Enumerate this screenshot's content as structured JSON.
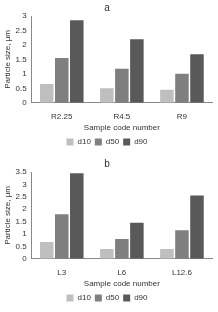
{
  "chart_data": [
    {
      "type": "bar",
      "title": "a",
      "x_label": "Sample code number",
      "y_label": "Particle size, µm",
      "categories": [
        "R2.25",
        "R4.5",
        "R9"
      ],
      "series": [
        {
          "name": "d10",
          "color": "#bfbfbf",
          "values": [
            0.65,
            0.5,
            0.45
          ]
        },
        {
          "name": "d50",
          "color": "#7f7f7f",
          "values": [
            1.55,
            1.18,
            1.0
          ]
        },
        {
          "name": "d90",
          "color": "#595959",
          "values": [
            2.85,
            2.2,
            1.68
          ]
        }
      ],
      "ylim": [
        0,
        3
      ],
      "yticks": [
        0,
        0.5,
        1,
        1.5,
        2,
        2.5,
        3
      ],
      "grid": false,
      "legend": "bottom"
    },
    {
      "type": "bar",
      "title": "b",
      "x_label": "Sample code number",
      "y_label": "Particle size, µm",
      "categories": [
        "L3",
        "L6",
        "L12.6"
      ],
      "series": [
        {
          "name": "d10",
          "color": "#bfbfbf",
          "values": [
            0.68,
            0.4,
            0.4
          ]
        },
        {
          "name": "d50",
          "color": "#7f7f7f",
          "values": [
            1.8,
            0.8,
            1.15
          ]
        },
        {
          "name": "d90",
          "color": "#595959",
          "values": [
            3.45,
            1.45,
            2.55
          ]
        }
      ],
      "ylim": [
        0,
        3.5
      ],
      "yticks": [
        0,
        0.5,
        1,
        1.5,
        2,
        2.5,
        3,
        3.5
      ],
      "grid": false,
      "legend": "bottom"
    }
  ]
}
